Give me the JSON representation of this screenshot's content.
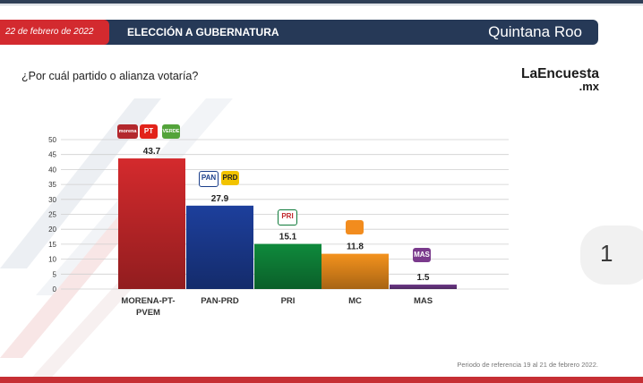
{
  "header": {
    "date": "22 de febrero de 2022",
    "title": "ELECCIÓN A GUBERNATURA",
    "state": "Quintana Roo"
  },
  "question": "¿Por cuál partido o alianza votaría?",
  "brand": {
    "line1": "LaEncuesta",
    "line2": ".mx"
  },
  "page_number": "1",
  "footnote": "Periodo de referencia 19 al 21 de febrero 2022.",
  "party_logos": [
    {
      "label": "morena",
      "color": "#b3282d"
    },
    {
      "label": "PT",
      "color": "#e2231a"
    },
    {
      "label": "VERDE",
      "color": "#53a33a"
    },
    {
      "label": "PAN",
      "color": "#1b3f8b"
    },
    {
      "label": "PRD",
      "color": "#f2c300"
    },
    {
      "label": "PRI",
      "color": "#0f7a3a"
    },
    {
      "label": "MC",
      "color": "#f28c1e"
    },
    {
      "label": "MAS",
      "color": "#7a3a8c"
    }
  ],
  "chart_data": {
    "type": "bar",
    "categories": [
      "MORENA-PT-\nPVEM",
      "PAN-PRD",
      "PRI",
      "MC",
      "MAS"
    ],
    "values": [
      43.7,
      27.9,
      15.1,
      11.8,
      1.5
    ],
    "value_labels": [
      "43.7",
      "27.9",
      "15.1",
      "11.8",
      "1.5"
    ],
    "colors": [
      "#d42a2d",
      "#1d3f9c",
      "#0f8a3c",
      "#f4921d",
      "#6f3a8a"
    ],
    "ylim": [
      0,
      50
    ],
    "yticks": [
      "0",
      "5",
      "10",
      "15",
      "20",
      "25",
      "30",
      "35",
      "40",
      "45",
      "50"
    ],
    "grid": true
  }
}
